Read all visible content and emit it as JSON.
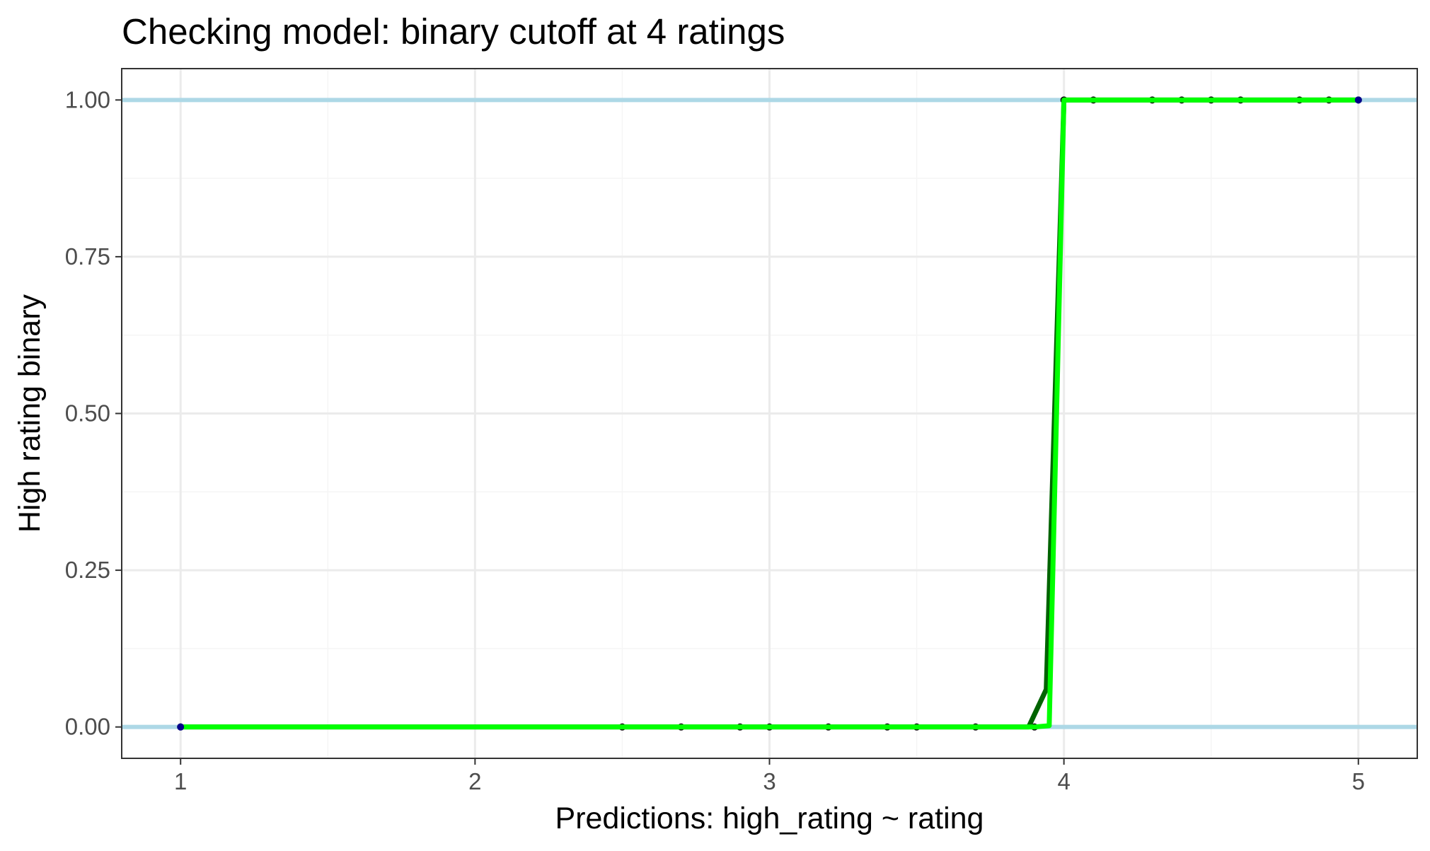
{
  "chart_data": {
    "type": "line",
    "title": "Checking model: binary cutoff at 4 ratings",
    "xlabel": "Predictions: high_rating ~ rating",
    "ylabel": "High rating binary",
    "xlim": [
      0.8,
      5.2
    ],
    "ylim": [
      -0.05,
      1.05
    ],
    "x_ticks": [
      1,
      2,
      3,
      4,
      5
    ],
    "y_ticks": [
      0,
      0.25,
      0.5,
      0.75,
      1
    ],
    "x_tick_labels": [
      "1",
      "2",
      "3",
      "4",
      "5"
    ],
    "y_tick_labels": [
      "0.00",
      "0.25",
      "0.50",
      "0.75",
      "1.00"
    ],
    "x_minor_ticks": [
      1.5,
      2.5,
      3.5,
      4.5
    ],
    "y_minor_ticks": [
      0.125,
      0.375,
      0.625,
      0.875
    ],
    "grid": true,
    "reference_lines": {
      "y": [
        0,
        1
      ],
      "color": "#add8e6"
    },
    "series": [
      {
        "kind": "points",
        "color": "#000000",
        "x": [
          1.0,
          2.5,
          2.7,
          2.9,
          3.0,
          3.2,
          3.4,
          3.5,
          3.7,
          3.9,
          4.0,
          4.1,
          4.3,
          4.4,
          4.5,
          4.6,
          4.8,
          4.9,
          5.0
        ],
        "y": [
          0,
          0,
          0,
          0,
          0,
          0,
          0,
          0,
          0,
          0,
          1,
          1,
          1,
          1,
          1,
          1,
          1,
          1,
          1
        ]
      },
      {
        "kind": "line",
        "color": "#006400",
        "x": [
          1.0,
          3.88,
          3.94,
          4.0,
          5.0
        ],
        "y": [
          0,
          0,
          0.06,
          1,
          1
        ]
      },
      {
        "kind": "line",
        "color": "#00ff00",
        "x": [
          1.0,
          3.9,
          3.95,
          4.0,
          5.0
        ],
        "y": [
          0,
          0,
          0.002,
          1,
          1
        ]
      }
    ],
    "colors": {
      "panel_border": "#333333",
      "grid_major": "#ebebeb",
      "grid_minor": "#f5f5f5",
      "axis_ticks": "#333333"
    }
  }
}
